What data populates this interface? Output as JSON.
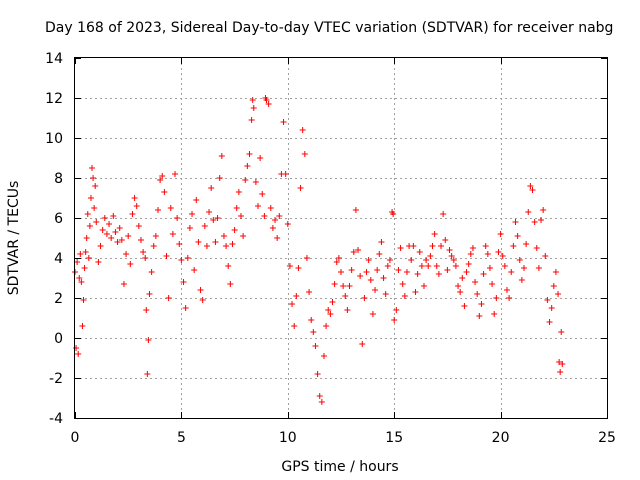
{
  "chart_data": {
    "type": "scatter",
    "title": "Day 168 of 2023, Sidereal Day-to-day VTEC variation (SDTVAR) for receiver nabg",
    "xlabel": "GPS time / hours",
    "ylabel": "SDTVAR / TECUs",
    "xlim": [
      0,
      25
    ],
    "ylim": [
      -4,
      14
    ],
    "xticks": [
      0,
      5,
      10,
      15,
      20,
      25
    ],
    "yticks": [
      -4,
      -2,
      0,
      2,
      4,
      6,
      8,
      10,
      12,
      14
    ],
    "grid": true,
    "marker": "+",
    "series": [
      {
        "name": "SDTVAR",
        "color": "#ff0000",
        "points": [
          [
            0.0,
            3.3
          ],
          [
            0.05,
            -0.5
          ],
          [
            0.1,
            3.8
          ],
          [
            0.15,
            -0.8
          ],
          [
            0.2,
            3.0
          ],
          [
            0.25,
            4.2
          ],
          [
            0.3,
            2.8
          ],
          [
            0.35,
            0.6
          ],
          [
            0.4,
            1.9
          ],
          [
            0.45,
            3.5
          ],
          [
            0.5,
            4.3
          ],
          [
            0.55,
            5.0
          ],
          [
            0.6,
            6.2
          ],
          [
            0.65,
            4.0
          ],
          [
            0.7,
            5.6
          ],
          [
            0.75,
            7.0
          ],
          [
            0.8,
            8.5
          ],
          [
            0.85,
            8.0
          ],
          [
            0.9,
            6.5
          ],
          [
            0.95,
            7.6
          ],
          [
            1.0,
            5.8
          ],
          [
            1.1,
            3.8
          ],
          [
            1.2,
            4.6
          ],
          [
            1.3,
            5.4
          ],
          [
            1.4,
            6.0
          ],
          [
            1.5,
            5.2
          ],
          [
            1.6,
            5.7
          ],
          [
            1.7,
            5.0
          ],
          [
            1.8,
            6.1
          ],
          [
            1.9,
            5.3
          ],
          [
            2.0,
            4.8
          ],
          [
            2.1,
            5.5
          ],
          [
            2.2,
            4.9
          ],
          [
            2.3,
            2.7
          ],
          [
            2.4,
            4.2
          ],
          [
            2.5,
            5.1
          ],
          [
            2.6,
            3.7
          ],
          [
            2.7,
            6.2
          ],
          [
            2.8,
            7.0
          ],
          [
            2.9,
            6.6
          ],
          [
            3.0,
            5.6
          ],
          [
            3.1,
            4.9
          ],
          [
            3.2,
            4.3
          ],
          [
            3.3,
            4.0
          ],
          [
            3.35,
            1.4
          ],
          [
            3.4,
            -1.8
          ],
          [
            3.45,
            -0.1
          ],
          [
            3.5,
            2.2
          ],
          [
            3.6,
            3.3
          ],
          [
            3.7,
            4.6
          ],
          [
            3.8,
            5.1
          ],
          [
            3.9,
            6.4
          ],
          [
            4.0,
            7.9
          ],
          [
            4.1,
            8.1
          ],
          [
            4.2,
            7.3
          ],
          [
            4.3,
            4.1
          ],
          [
            4.4,
            2.0
          ],
          [
            4.5,
            6.5
          ],
          [
            4.6,
            5.2
          ],
          [
            4.7,
            8.2
          ],
          [
            4.8,
            6.0
          ],
          [
            4.9,
            4.7
          ],
          [
            5.0,
            3.9
          ],
          [
            5.1,
            2.8
          ],
          [
            5.2,
            1.5
          ],
          [
            5.3,
            4.0
          ],
          [
            5.4,
            5.5
          ],
          [
            5.5,
            6.2
          ],
          [
            5.6,
            3.4
          ],
          [
            5.7,
            6.9
          ],
          [
            5.8,
            4.8
          ],
          [
            5.9,
            2.4
          ],
          [
            6.0,
            1.9
          ],
          [
            6.1,
            5.6
          ],
          [
            6.2,
            4.6
          ],
          [
            6.3,
            6.3
          ],
          [
            6.4,
            7.5
          ],
          [
            6.5,
            5.9
          ],
          [
            6.6,
            4.8
          ],
          [
            6.7,
            6.0
          ],
          [
            6.8,
            8.0
          ],
          [
            6.9,
            9.1
          ],
          [
            7.0,
            5.1
          ],
          [
            7.1,
            4.6
          ],
          [
            7.2,
            3.6
          ],
          [
            7.3,
            2.7
          ],
          [
            7.4,
            4.7
          ],
          [
            7.5,
            5.4
          ],
          [
            7.6,
            6.5
          ],
          [
            7.7,
            7.3
          ],
          [
            7.8,
            6.1
          ],
          [
            7.9,
            5.1
          ],
          [
            8.0,
            7.9
          ],
          [
            8.1,
            8.6
          ],
          [
            8.2,
            9.2
          ],
          [
            8.3,
            10.9
          ],
          [
            8.35,
            11.9
          ],
          [
            8.4,
            11.5
          ],
          [
            8.5,
            7.8
          ],
          [
            8.6,
            6.6
          ],
          [
            8.7,
            9.0
          ],
          [
            8.8,
            7.2
          ],
          [
            8.9,
            6.1
          ],
          [
            8.95,
            12.0
          ],
          [
            9.0,
            11.9
          ],
          [
            9.1,
            11.7
          ],
          [
            9.2,
            6.5
          ],
          [
            9.3,
            5.5
          ],
          [
            9.4,
            5.9
          ],
          [
            9.5,
            5.0
          ],
          [
            9.6,
            6.1
          ],
          [
            9.7,
            8.2
          ],
          [
            9.8,
            10.8
          ],
          [
            9.9,
            8.2
          ],
          [
            10.0,
            5.7
          ],
          [
            10.1,
            3.6
          ],
          [
            10.2,
            1.7
          ],
          [
            10.3,
            0.6
          ],
          [
            10.4,
            2.1
          ],
          [
            10.5,
            3.5
          ],
          [
            10.6,
            7.5
          ],
          [
            10.7,
            10.4
          ],
          [
            10.8,
            9.2
          ],
          [
            10.9,
            4.0
          ],
          [
            11.0,
            2.3
          ],
          [
            11.1,
            0.9
          ],
          [
            11.2,
            0.3
          ],
          [
            11.3,
            -0.4
          ],
          [
            11.4,
            -1.8
          ],
          [
            11.5,
            -2.9
          ],
          [
            11.6,
            -3.2
          ],
          [
            11.7,
            -0.9
          ],
          [
            11.8,
            0.6
          ],
          [
            11.9,
            1.4
          ],
          [
            12.0,
            1.2
          ],
          [
            12.1,
            1.8
          ],
          [
            12.2,
            2.7
          ],
          [
            12.3,
            3.8
          ],
          [
            12.4,
            4.0
          ],
          [
            12.5,
            3.3
          ],
          [
            12.6,
            2.6
          ],
          [
            12.7,
            2.1
          ],
          [
            12.8,
            1.4
          ],
          [
            12.9,
            2.6
          ],
          [
            13.0,
            3.4
          ],
          [
            13.1,
            4.3
          ],
          [
            13.2,
            6.4
          ],
          [
            13.3,
            4.4
          ],
          [
            13.4,
            3.1
          ],
          [
            13.5,
            -0.3
          ],
          [
            13.6,
            2.0
          ],
          [
            13.7,
            3.3
          ],
          [
            13.8,
            3.9
          ],
          [
            13.9,
            2.9
          ],
          [
            14.0,
            1.2
          ],
          [
            14.1,
            2.4
          ],
          [
            14.2,
            3.4
          ],
          [
            14.3,
            4.2
          ],
          [
            14.4,
            4.8
          ],
          [
            14.5,
            3.0
          ],
          [
            14.6,
            2.2
          ],
          [
            14.7,
            3.6
          ],
          [
            14.8,
            3.9
          ],
          [
            14.9,
            6.3
          ],
          [
            14.95,
            6.2
          ],
          [
            15.0,
            0.9
          ],
          [
            15.1,
            1.4
          ],
          [
            15.2,
            3.4
          ],
          [
            15.3,
            4.5
          ],
          [
            15.4,
            2.7
          ],
          [
            15.5,
            2.1
          ],
          [
            15.6,
            3.3
          ],
          [
            15.7,
            4.6
          ],
          [
            15.8,
            3.9
          ],
          [
            15.9,
            4.6
          ],
          [
            16.0,
            2.3
          ],
          [
            16.1,
            3.2
          ],
          [
            16.2,
            4.3
          ],
          [
            16.3,
            3.6
          ],
          [
            16.4,
            2.6
          ],
          [
            16.5,
            3.9
          ],
          [
            16.6,
            3.6
          ],
          [
            16.7,
            4.1
          ],
          [
            16.8,
            4.6
          ],
          [
            16.9,
            5.2
          ],
          [
            17.0,
            3.6
          ],
          [
            17.1,
            3.2
          ],
          [
            17.2,
            4.6
          ],
          [
            17.3,
            6.2
          ],
          [
            17.4,
            4.9
          ],
          [
            17.5,
            3.4
          ],
          [
            17.6,
            4.4
          ],
          [
            17.7,
            4.1
          ],
          [
            17.8,
            3.9
          ],
          [
            17.9,
            3.6
          ],
          [
            18.0,
            2.6
          ],
          [
            18.1,
            2.3
          ],
          [
            18.2,
            3.0
          ],
          [
            18.3,
            1.6
          ],
          [
            18.4,
            3.3
          ],
          [
            18.5,
            3.7
          ],
          [
            18.6,
            4.2
          ],
          [
            18.7,
            4.5
          ],
          [
            18.8,
            2.8
          ],
          [
            18.9,
            2.2
          ],
          [
            19.0,
            1.1
          ],
          [
            19.1,
            1.7
          ],
          [
            19.2,
            3.2
          ],
          [
            19.3,
            4.6
          ],
          [
            19.4,
            4.2
          ],
          [
            19.5,
            3.5
          ],
          [
            19.6,
            2.7
          ],
          [
            19.7,
            1.2
          ],
          [
            19.8,
            2.0
          ],
          [
            19.9,
            4.3
          ],
          [
            20.0,
            5.2
          ],
          [
            20.1,
            4.1
          ],
          [
            20.2,
            3.6
          ],
          [
            20.3,
            2.4
          ],
          [
            20.4,
            2.0
          ],
          [
            20.5,
            3.3
          ],
          [
            20.6,
            4.6
          ],
          [
            20.7,
            5.8
          ],
          [
            20.8,
            5.1
          ],
          [
            20.9,
            3.9
          ],
          [
            21.0,
            2.9
          ],
          [
            21.1,
            3.5
          ],
          [
            21.2,
            4.7
          ],
          [
            21.3,
            6.3
          ],
          [
            21.4,
            7.6
          ],
          [
            21.5,
            7.4
          ],
          [
            21.6,
            5.8
          ],
          [
            21.7,
            4.5
          ],
          [
            21.8,
            3.5
          ],
          [
            21.9,
            5.9
          ],
          [
            22.0,
            6.4
          ],
          [
            22.1,
            4.1
          ],
          [
            22.2,
            1.9
          ],
          [
            22.3,
            0.8
          ],
          [
            22.4,
            1.5
          ],
          [
            22.5,
            2.6
          ],
          [
            22.6,
            3.3
          ],
          [
            22.7,
            2.2
          ],
          [
            22.75,
            -1.2
          ],
          [
            22.8,
            -1.7
          ],
          [
            22.85,
            0.3
          ],
          [
            22.9,
            -1.3
          ]
        ]
      }
    ]
  }
}
